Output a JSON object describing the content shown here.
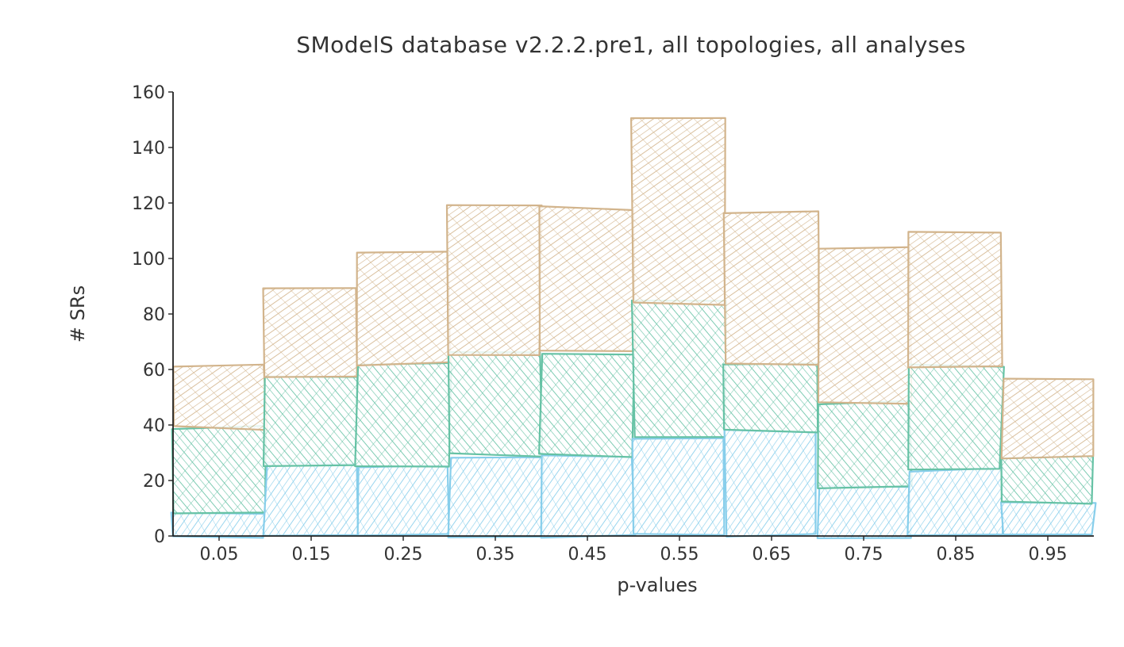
{
  "chart_data": {
    "type": "bar",
    "stacked": true,
    "title": "SModelS database v2.2.2.pre1, all topologies, all analyses",
    "xlabel": "p-values",
    "ylabel": "# SRs",
    "categories": [
      "0.05",
      "0.15",
      "0.25",
      "0.35",
      "0.45",
      "0.55",
      "0.65",
      "0.75",
      "0.85",
      "0.95"
    ],
    "x_ticks": [
      "0.05",
      "0.15",
      "0.25",
      "0.35",
      "0.45",
      "0.55",
      "0.65",
      "0.75",
      "0.85",
      "0.95"
    ],
    "ylim": [
      0,
      160
    ],
    "y_ticks": [
      0,
      20,
      40,
      60,
      80,
      100,
      120,
      140,
      160
    ],
    "series": [
      {
        "values": [
          8,
          26,
          25,
          29,
          29,
          35,
          38,
          18,
          24,
          12
        ],
        "color": "#87ceeb"
      },
      {
        "values": [
          31,
          31,
          37,
          37,
          37,
          49,
          24,
          30,
          37,
          16
        ],
        "color": "#66c2a5"
      },
      {
        "values": [
          22,
          33,
          40,
          53,
          52,
          67,
          55,
          56,
          49,
          28
        ],
        "color": "#d2b48c"
      }
    ],
    "grid": false,
    "style": "hand-drawn / xkcd hatched"
  }
}
